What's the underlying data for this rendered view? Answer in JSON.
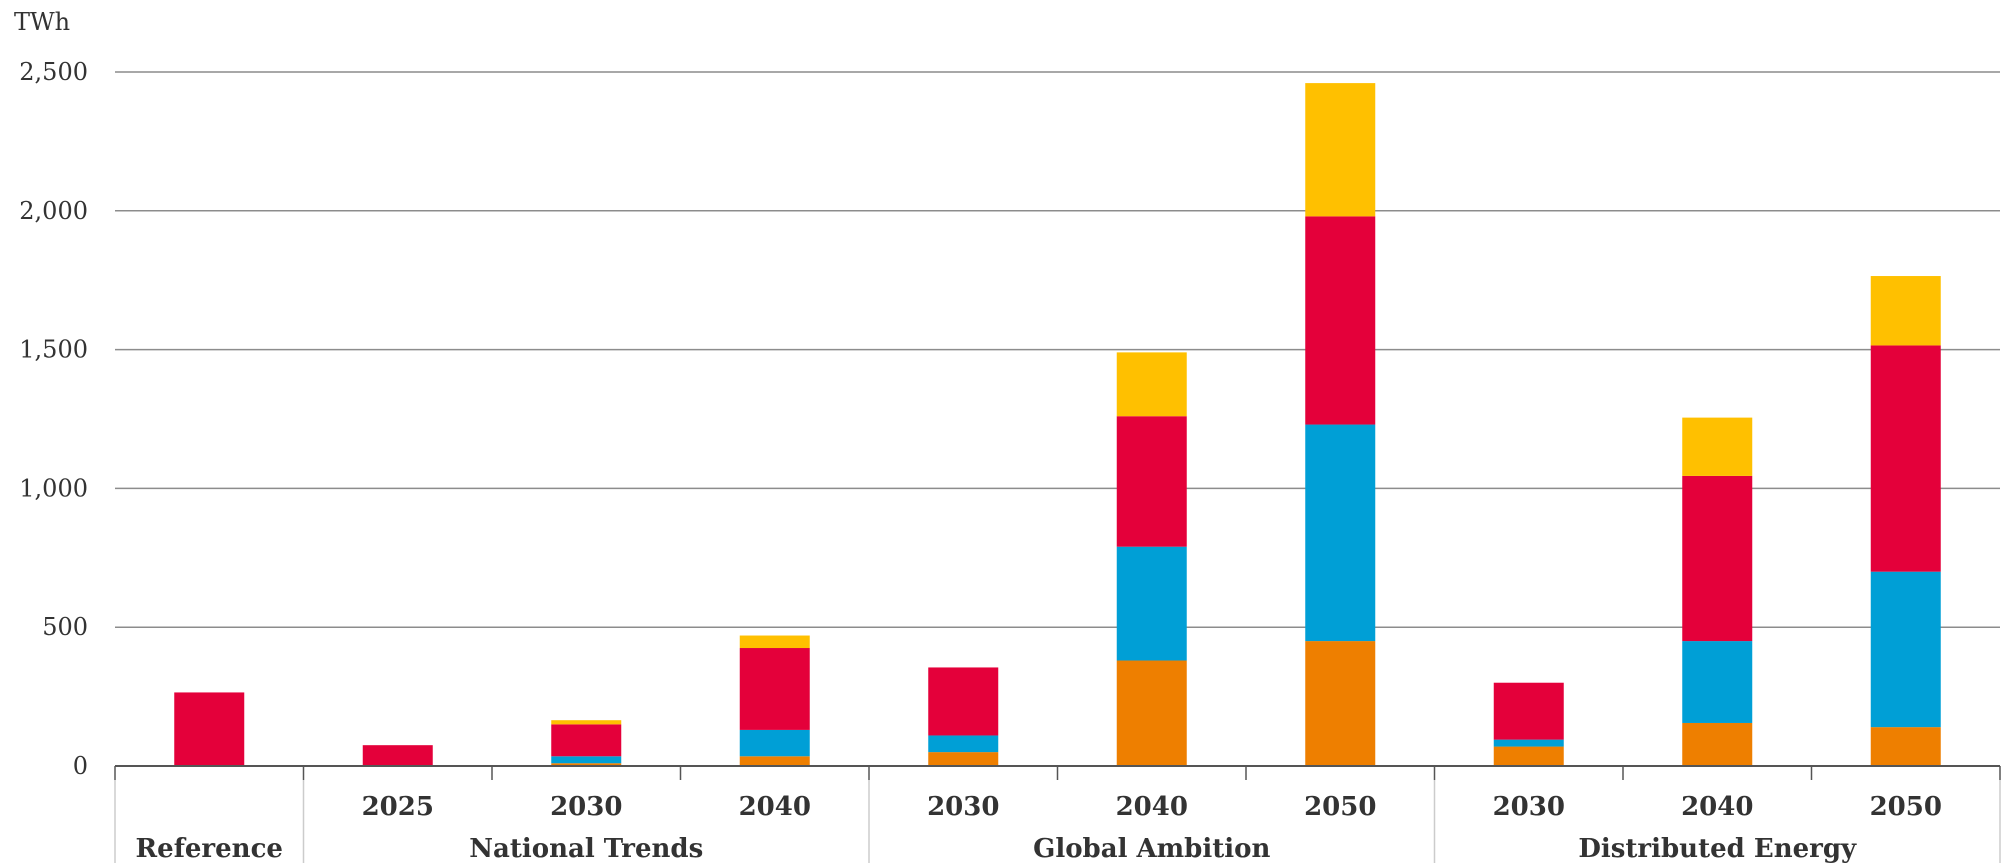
{
  "chart_data": {
    "type": "bar",
    "stacked": true,
    "unit_label": "TWh",
    "title": "",
    "xlabel": "",
    "ylabel": "",
    "ylim": [
      0,
      2500
    ],
    "yticks": [
      0,
      500,
      1000,
      1500,
      2000,
      2500
    ],
    "ytick_labels": [
      "0",
      "500",
      "1,000",
      "1,500",
      "2,000",
      "2,500"
    ],
    "grid": true,
    "legend": false,
    "categories": [
      {
        "year": "",
        "group": "Reference"
      },
      {
        "year": "2025",
        "group": "National Trends"
      },
      {
        "year": "2030",
        "group": "National Trends"
      },
      {
        "year": "2040",
        "group": "National Trends"
      },
      {
        "year": "2030",
        "group": "Global Ambition"
      },
      {
        "year": "2040",
        "group": "Global Ambition"
      },
      {
        "year": "2050",
        "group": "Global Ambition"
      },
      {
        "year": "2030",
        "group": "Distributed Energy"
      },
      {
        "year": "2040",
        "group": "Distributed Energy"
      },
      {
        "year": "2050",
        "group": "Distributed Energy"
      }
    ],
    "groups": [
      {
        "label": "Reference",
        "count": 1
      },
      {
        "label": "National Trends",
        "count": 3
      },
      {
        "label": "Global Ambition",
        "count": 3
      },
      {
        "label": "Distributed Energy",
        "count": 3
      }
    ],
    "series": [
      {
        "color": "#ee7f00",
        "values": [
          0,
          0,
          10,
          35,
          50,
          380,
          450,
          70,
          155,
          140
        ]
      },
      {
        "color": "#009fd6",
        "values": [
          0,
          0,
          25,
          95,
          60,
          410,
          780,
          25,
          295,
          560
        ]
      },
      {
        "color": "#e4003a",
        "values": [
          265,
          75,
          115,
          295,
          245,
          470,
          750,
          205,
          595,
          815
        ]
      },
      {
        "color": "#ffc000",
        "values": [
          0,
          0,
          15,
          45,
          0,
          230,
          480,
          0,
          210,
          250
        ]
      }
    ]
  }
}
